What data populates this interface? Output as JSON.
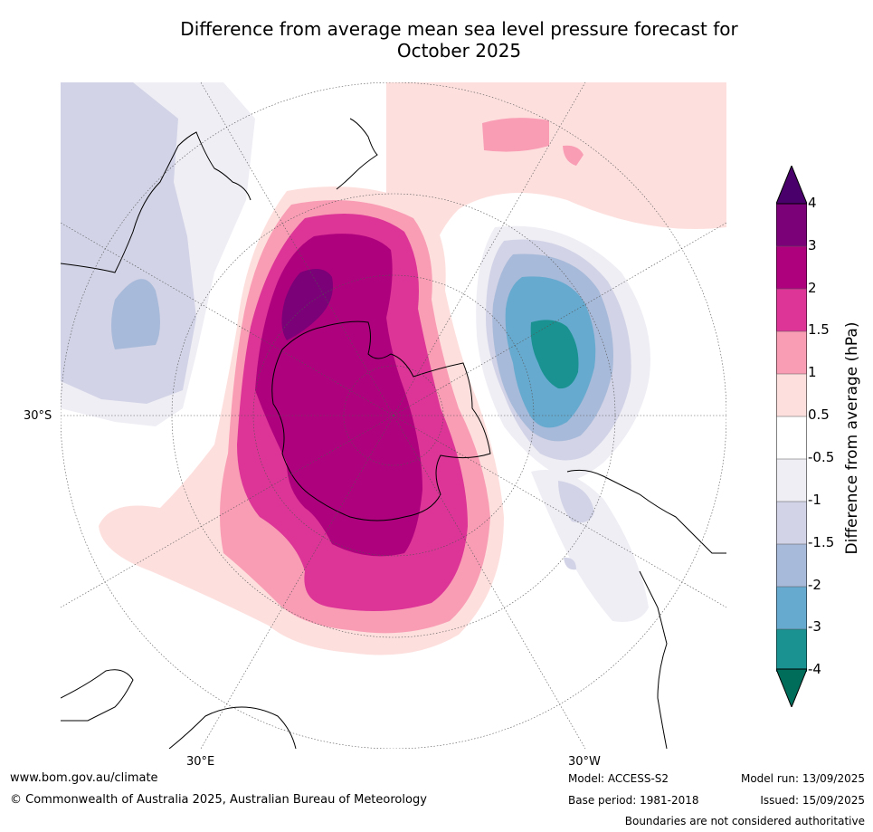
{
  "title": {
    "line1": "Difference from average mean sea level pressure forecast for",
    "line2": "October 2025"
  },
  "map": {
    "projection": "south-polar-stereographic",
    "graticule_labels": {
      "lat_30s": "30°S",
      "lon_30e": "30°E",
      "lon_30w": "30°W"
    },
    "colors": {
      "-4_under": "#006d5b",
      "-4_-3": "#1a9291",
      "-3_-2": "#67aacf",
      "-2_-1.5": "#a8bad9",
      "-1.5_-1": "#d2d3e6",
      "-1_-0.5": "#efeef5",
      "-0.5_0.5": "#ffffff",
      "0.5_1": "#fde0de",
      "1_1.5": "#f99db5",
      "1.5_2": "#dd3497",
      "2_3": "#ae017e",
      "3_4": "#7a0177",
      "4_over": "#49006a"
    }
  },
  "colorbar": {
    "label": "Difference from average (hPa)",
    "ticks": [
      "4",
      "3",
      "2",
      "1.5",
      "1",
      "0.5",
      "-0.5",
      "-1",
      "-1.5",
      "-2",
      "-3",
      "-4"
    ]
  },
  "footer": {
    "website": "www.bom.gov.au/climate",
    "copyright": "© Commonwealth of Australia 2025, Australian Bureau of Meteorology",
    "model": "Model: ACCESS-S2",
    "base_period": "Base period: 1981-2018",
    "model_run": "Model run: 13/09/2025",
    "issued": "Issued: 15/09/2025",
    "disclaimer": "Boundaries are not considered authoritative"
  }
}
